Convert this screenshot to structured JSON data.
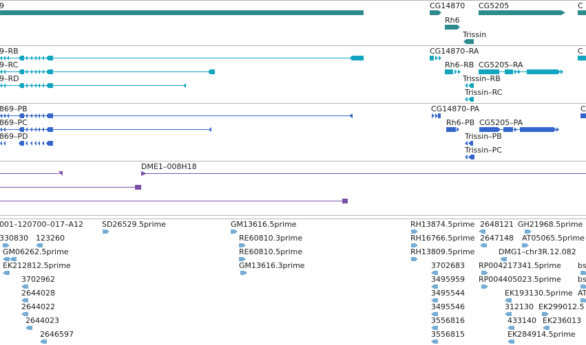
{
  "colors": {
    "gene": "#2e8b8b",
    "transcript_ra": "#12a5c0",
    "transcript_pb": "#3366cc",
    "clone": "#7b4fa8",
    "est": "#74acd6",
    "divider": "#b4b4b4"
  },
  "tracks": {
    "genes": {
      "labels": [
        "9",
        "CG14870",
        "CG5205",
        "C",
        "Rh6",
        "Trissin"
      ]
    },
    "transcripts_r": {
      "labels": [
        "9–RB",
        "9–RC",
        "9–RD",
        "CG14870–RA",
        "C",
        "Rh6–RB",
        "CG5205–RA",
        "Trissin–RB",
        "Trissin–RC"
      ]
    },
    "transcripts_p": {
      "labels": [
        "869–PB",
        "869–PC",
        "869–PD",
        "CG14870–PA",
        "C",
        "Rh6–PB",
        "CG5205–PA",
        "Trissin–PB",
        "Trissin–PC"
      ]
    },
    "clones": {
      "labels": [
        "DME1–008H18"
      ]
    },
    "ests": {
      "labels": [
        "001–120700–017–A12",
        "SD26529.5prime",
        "GM13616.5prime",
        "RH13874.5prime",
        "2648121",
        "GH21968.5prime",
        "330830",
        "123260",
        "RE60810.3prime",
        "RH16766.5prime",
        "2647148",
        "AT05065.5prime",
        "GM06262.5prime",
        "RE60810.5prime",
        "RH13809.5prime",
        "DMG1–chr3R.12.082",
        "EK212812.5prime",
        "GM13616.3prime",
        "3702683",
        "RP004217341.5prime",
        "bs",
        "3702962",
        "3495959",
        "RP004405023.5prime",
        "bs",
        "2644028",
        "3495544",
        "EK193130.5prime",
        "AT",
        "2644022",
        "3495546",
        "312130",
        "EK299012.5",
        "2644023",
        "3556816",
        "433140",
        "EK236013",
        "2646597",
        "3556815",
        "EK284914.5prime"
      ]
    }
  }
}
